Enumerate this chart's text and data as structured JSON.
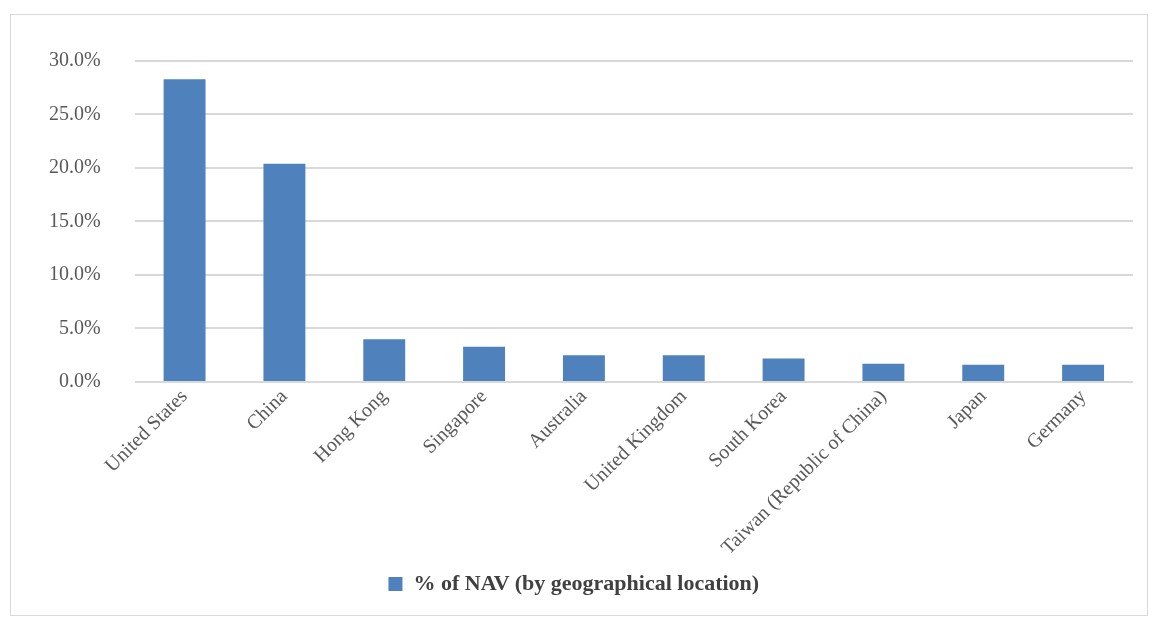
{
  "chart_data": {
    "type": "bar",
    "categories": [
      "United States",
      "China",
      "Hong Kong",
      "Singapore",
      "Australia",
      "United Kingdom",
      "South Korea",
      "Taiwan (Republic of China)",
      "Japan",
      "Germany"
    ],
    "series": [
      {
        "name": "% of NAV (by geographical location)",
        "color": "#4f81bd",
        "values": [
          28.3,
          20.4,
          4.0,
          3.3,
          2.5,
          2.5,
          2.2,
          1.7,
          1.6,
          1.6
        ]
      }
    ],
    "ylim": [
      0,
      30
    ],
    "yticks": [
      {
        "value": 0,
        "label": "0.0%"
      },
      {
        "value": 5,
        "label": "5.0%"
      },
      {
        "value": 10,
        "label": "10.0%"
      },
      {
        "value": 15,
        "label": "15.0%"
      },
      {
        "value": 20,
        "label": "20.0%"
      },
      {
        "value": 25,
        "label": "25.0%"
      },
      {
        "value": 30,
        "label": "30.0%"
      }
    ],
    "grid": "y",
    "legend": "bottom"
  }
}
